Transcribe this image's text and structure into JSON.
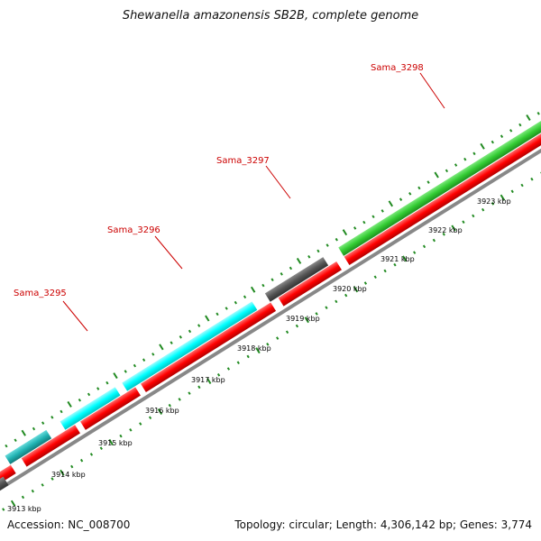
{
  "title": "Shewanella amazonensis SB2B, complete genome",
  "footer": {
    "accession": "Accession: NC_008700",
    "summary": "Topology: circular; Length: 4,306,142 bp; Genes: 3,774"
  },
  "colors": {
    "cds_red": "#ff0000",
    "gene_cyan": "#00ffff",
    "gene_green": "#33cc33",
    "gene_gray": "#555555",
    "gene_teal": "#20b2b2",
    "gene_orange": "#ff9900",
    "backbone": "#888888",
    "ticks": "#228b22",
    "label_red": "#cc0000"
  },
  "scale": {
    "unit": "kbp",
    "ticks": [
      {
        "label": "3913 kbp"
      },
      {
        "label": "3914 kbp"
      },
      {
        "label": "3915 kbp"
      },
      {
        "label": "3916 kbp"
      },
      {
        "label": "3917 kbp"
      },
      {
        "label": "3918 kbp"
      },
      {
        "label": "3919 kbp"
      },
      {
        "label": "3920 kbp"
      },
      {
        "label": "3921 kbp"
      },
      {
        "label": "3922 kbp"
      },
      {
        "label": "3923 kbp"
      }
    ]
  },
  "gene_labels": [
    {
      "name": "Sama_3295"
    },
    {
      "name": "Sama_3296"
    },
    {
      "name": "Sama_3297"
    },
    {
      "name": "Sama_3298"
    }
  ]
}
